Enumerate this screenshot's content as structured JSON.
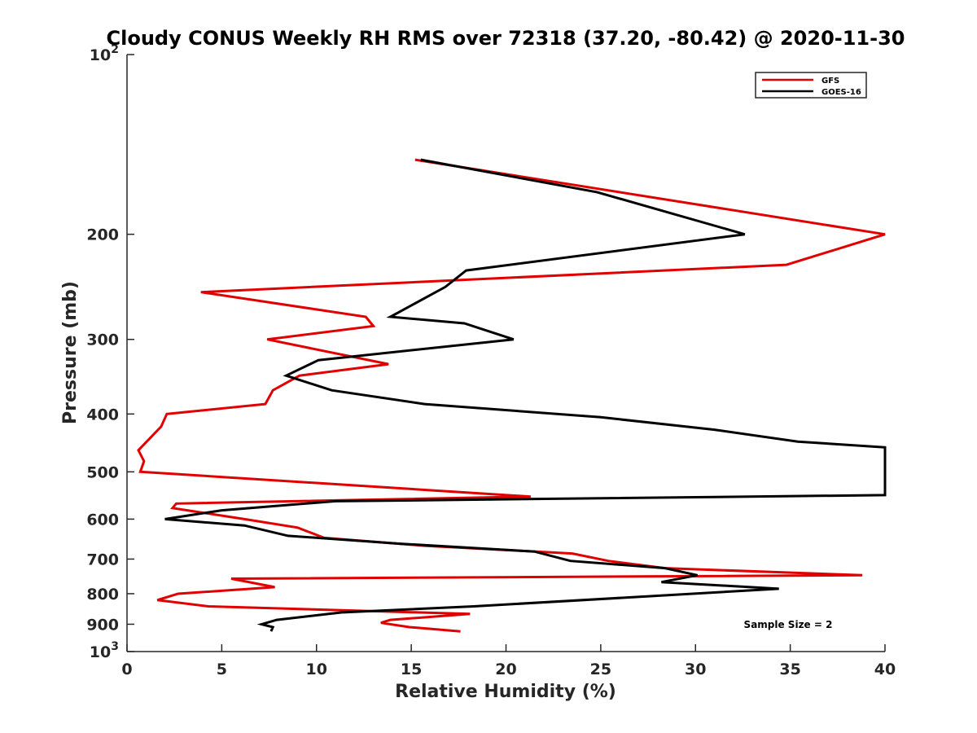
{
  "chart_data": {
    "type": "line",
    "title": "Cloudy CONUS Weekly RH RMS over 72318 (37.20, -80.42) @ 2020-11-30",
    "xlabel": "Relative Humidity (%)",
    "ylabel": "Pressure (mb)",
    "xlim": [
      0,
      40
    ],
    "ylim": [
      100,
      1000
    ],
    "yscale": "log",
    "y_reversed": true,
    "x_ticks": [
      0,
      5,
      10,
      15,
      20,
      25,
      30,
      35,
      40
    ],
    "y_ticks": [
      {
        "value": 100,
        "base": "10",
        "exp": "2"
      },
      {
        "value": 200,
        "label": "200"
      },
      {
        "value": 300,
        "label": "300"
      },
      {
        "value": 400,
        "label": "400"
      },
      {
        "value": 500,
        "label": "500"
      },
      {
        "value": 600,
        "label": "600"
      },
      {
        "value": 700,
        "label": "700"
      },
      {
        "value": 800,
        "label": "800"
      },
      {
        "value": 900,
        "label": "900"
      },
      {
        "value": 1000,
        "base": "10",
        "exp": "3"
      }
    ],
    "legend_position": "top-right",
    "annotation": "Sample Size = 2",
    "series": [
      {
        "name": "GFS",
        "color": "#e00000",
        "points": [
          [
            15.2,
            150
          ],
          [
            40.0,
            200
          ],
          [
            34.8,
            225
          ],
          [
            3.9,
            250
          ],
          [
            12.6,
            275
          ],
          [
            13.0,
            285
          ],
          [
            7.4,
            300
          ],
          [
            13.8,
            330
          ],
          [
            9.1,
            345
          ],
          [
            7.7,
            365
          ],
          [
            7.3,
            385
          ],
          [
            2.1,
            400
          ],
          [
            1.8,
            420
          ],
          [
            0.6,
            460
          ],
          [
            0.9,
            480
          ],
          [
            0.7,
            500
          ],
          [
            21.3,
            550
          ],
          [
            2.6,
            565
          ],
          [
            2.4,
            575
          ],
          [
            6.2,
            600
          ],
          [
            9.0,
            620
          ],
          [
            10.4,
            645
          ],
          [
            15.7,
            665
          ],
          [
            23.5,
            685
          ],
          [
            25.4,
            705
          ],
          [
            28.4,
            725
          ],
          [
            38.8,
            745
          ],
          [
            5.5,
            755
          ],
          [
            7.8,
            780
          ],
          [
            2.7,
            800
          ],
          [
            1.6,
            820
          ],
          [
            4.3,
            840
          ],
          [
            18.1,
            865
          ],
          [
            13.9,
            885
          ],
          [
            13.4,
            895
          ],
          [
            14.9,
            910
          ],
          [
            17.6,
            925
          ]
        ]
      },
      {
        "name": "GOES-16",
        "color": "#000000",
        "points": [
          [
            15.5,
            150
          ],
          [
            24.8,
            170
          ],
          [
            32.6,
            200
          ],
          [
            17.9,
            230
          ],
          [
            16.8,
            245
          ],
          [
            13.9,
            275
          ],
          [
            17.8,
            282
          ],
          [
            20.4,
            300
          ],
          [
            10.1,
            325
          ],
          [
            8.4,
            345
          ],
          [
            10.8,
            365
          ],
          [
            15.7,
            385
          ],
          [
            25.0,
            405
          ],
          [
            31.0,
            425
          ],
          [
            35.4,
            445
          ],
          [
            40.0,
            455
          ],
          [
            40.0,
            547
          ],
          [
            11.0,
            560
          ],
          [
            5.0,
            580
          ],
          [
            2.0,
            600
          ],
          [
            6.2,
            615
          ],
          [
            8.5,
            640
          ],
          [
            14.5,
            660
          ],
          [
            21.5,
            680
          ],
          [
            23.4,
            705
          ],
          [
            28.4,
            725
          ],
          [
            30.1,
            745
          ],
          [
            28.2,
            765
          ],
          [
            34.4,
            785
          ],
          [
            18.3,
            840
          ],
          [
            11.3,
            860
          ],
          [
            7.9,
            885
          ],
          [
            7.1,
            900
          ],
          [
            7.7,
            910
          ],
          [
            7.6,
            925
          ]
        ]
      }
    ]
  }
}
